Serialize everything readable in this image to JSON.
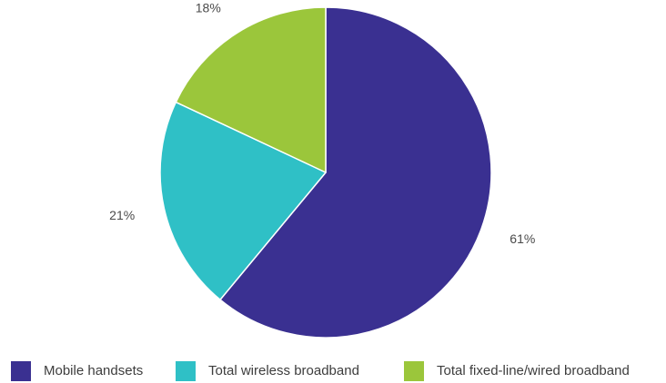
{
  "chart_data": {
    "type": "pie",
    "title": "",
    "categories": [
      "Mobile handsets",
      "Total wireless broadband",
      "Total fixed-line/wired broadband"
    ],
    "values": [
      61,
      21,
      18
    ],
    "value_labels": [
      "61%",
      "21%",
      "18%"
    ],
    "colors": [
      "#3a3091",
      "#2fc0c6",
      "#9bc63b"
    ],
    "start_angle": "12 o'clock",
    "direction": "clockwise",
    "legend_position": "bottom"
  }
}
